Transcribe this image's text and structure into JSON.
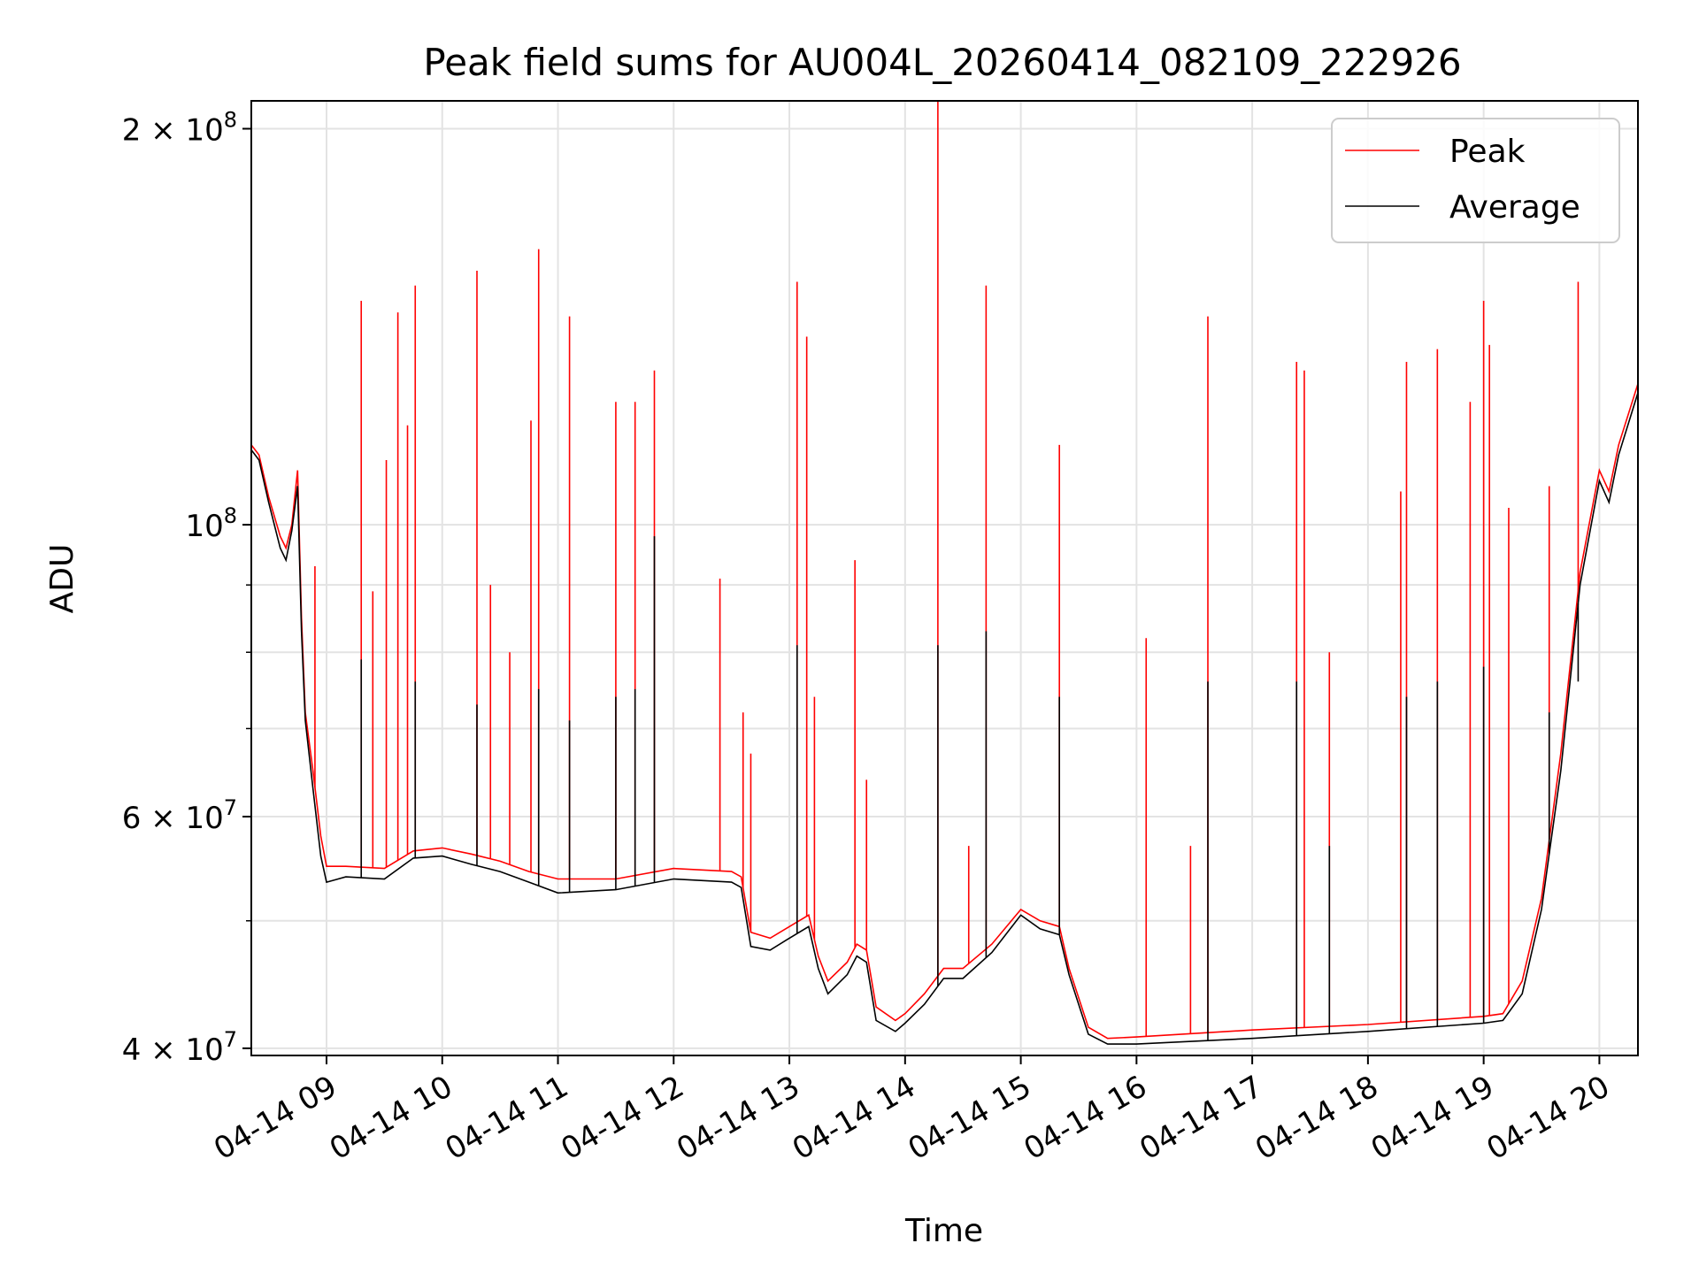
{
  "chart_data": {
    "type": "line",
    "title": "Peak field sums for AU004L_20260414_082109_222926",
    "xlabel": "Time",
    "ylabel": "ADU",
    "yscale": "log",
    "ylim": [
      39500000,
      210000000
    ],
    "xlim": [
      "2026-04-14 08:21",
      "2026-04-14 20:20"
    ],
    "grid": true,
    "legend_position": "top-right",
    "x_ticks": [
      {
        "x": "2026-04-14 09:00",
        "label": "04-14 09"
      },
      {
        "x": "2026-04-14 10:00",
        "label": "04-14 10"
      },
      {
        "x": "2026-04-14 11:00",
        "label": "04-14 11"
      },
      {
        "x": "2026-04-14 12:00",
        "label": "04-14 12"
      },
      {
        "x": "2026-04-14 13:00",
        "label": "04-14 13"
      },
      {
        "x": "2026-04-14 14:00",
        "label": "04-14 14"
      },
      {
        "x": "2026-04-14 15:00",
        "label": "04-14 15"
      },
      {
        "x": "2026-04-14 16:00",
        "label": "04-14 16"
      },
      {
        "x": "2026-04-14 17:00",
        "label": "04-14 17"
      },
      {
        "x": "2026-04-14 18:00",
        "label": "04-14 18"
      },
      {
        "x": "2026-04-14 19:00",
        "label": "04-14 19"
      },
      {
        "x": "2026-04-14 20:00",
        "label": "04-14 20"
      }
    ],
    "y_ticks": [
      {
        "y": 200000000,
        "base": "2 × 10",
        "exp": "8"
      },
      {
        "y": 100000000,
        "base": "10",
        "exp": "8"
      },
      {
        "y": 60000000,
        "base": "6 × 10",
        "exp": "7"
      },
      {
        "y": 40000000,
        "base": "4 × 10",
        "exp": "7"
      }
    ],
    "y_minor_ticks": [
      50000000,
      70000000,
      80000000,
      90000000
    ],
    "series": [
      {
        "name": "Peak",
        "color": "#ff0000",
        "points": [
          [
            "2026-04-14 08:21",
            115000000
          ],
          [
            "2026-04-14 08:25",
            113000000
          ],
          [
            "2026-04-14 08:30",
            105000000
          ],
          [
            "2026-04-14 08:36",
            98000000
          ],
          [
            "2026-04-14 08:39",
            96000000
          ],
          [
            "2026-04-14 08:42",
            100000000
          ],
          [
            "2026-04-14 08:45",
            110000000
          ],
          [
            "2026-04-14 08:47",
            85000000
          ],
          [
            "2026-04-14 08:49",
            72000000
          ],
          [
            "2026-04-14 08:53",
            65000000
          ],
          [
            "2026-04-14 08:57",
            58000000
          ],
          [
            "2026-04-14 09:00",
            55000000
          ],
          [
            "2026-04-14 09:10",
            55000000
          ],
          [
            "2026-04-14 09:30",
            54800000
          ],
          [
            "2026-04-14 09:45",
            56500000
          ],
          [
            "2026-04-14 10:00",
            56800000
          ],
          [
            "2026-04-14 10:15",
            56200000
          ],
          [
            "2026-04-14 10:30",
            55500000
          ],
          [
            "2026-04-14 10:45",
            54500000
          ],
          [
            "2026-04-14 11:00",
            53800000
          ],
          [
            "2026-04-14 11:30",
            53800000
          ],
          [
            "2026-04-14 12:00",
            54800000
          ],
          [
            "2026-04-14 12:30",
            54500000
          ],
          [
            "2026-04-14 12:35",
            54000000
          ],
          [
            "2026-04-14 12:40",
            49000000
          ],
          [
            "2026-04-14 12:50",
            48500000
          ],
          [
            "2026-04-14 13:00",
            49500000
          ],
          [
            "2026-04-14 13:10",
            50500000
          ],
          [
            "2026-04-14 13:15",
            47000000
          ],
          [
            "2026-04-14 13:20",
            45000000
          ],
          [
            "2026-04-14 13:30",
            46500000
          ],
          [
            "2026-04-14 13:35",
            48000000
          ],
          [
            "2026-04-14 13:40",
            47500000
          ],
          [
            "2026-04-14 13:45",
            43000000
          ],
          [
            "2026-04-14 13:55",
            42000000
          ],
          [
            "2026-04-14 14:00",
            42500000
          ],
          [
            "2026-04-14 14:10",
            44000000
          ],
          [
            "2026-04-14 14:20",
            46000000
          ],
          [
            "2026-04-14 14:30",
            46000000
          ],
          [
            "2026-04-14 14:45",
            48000000
          ],
          [
            "2026-04-14 15:00",
            51000000
          ],
          [
            "2026-04-14 15:10",
            50000000
          ],
          [
            "2026-04-14 15:20",
            49500000
          ],
          [
            "2026-04-14 15:25",
            46000000
          ],
          [
            "2026-04-14 15:35",
            41500000
          ],
          [
            "2026-04-14 15:45",
            40700000
          ],
          [
            "2026-04-14 16:00",
            40800000
          ],
          [
            "2026-04-14 17:00",
            41300000
          ],
          [
            "2026-04-14 18:00",
            41700000
          ],
          [
            "2026-04-14 19:00",
            42300000
          ],
          [
            "2026-04-14 19:10",
            42500000
          ],
          [
            "2026-04-14 19:20",
            45000000
          ],
          [
            "2026-04-14 19:30",
            52000000
          ],
          [
            "2026-04-14 19:40",
            67000000
          ],
          [
            "2026-04-14 19:50",
            92000000
          ],
          [
            "2026-04-14 20:00",
            110000000
          ],
          [
            "2026-04-14 20:05",
            106000000
          ],
          [
            "2026-04-14 20:10",
            115000000
          ],
          [
            "2026-04-14 20:20",
            128000000
          ]
        ],
        "spikes": [
          [
            "2026-04-14 08:54",
            93000000
          ],
          [
            "2026-04-14 09:18",
            148000000
          ],
          [
            "2026-04-14 09:24",
            89000000
          ],
          [
            "2026-04-14 09:31",
            112000000
          ],
          [
            "2026-04-14 09:37",
            145000000
          ],
          [
            "2026-04-14 09:42",
            119000000
          ],
          [
            "2026-04-14 09:46",
            152000000
          ],
          [
            "2026-04-14 10:18",
            156000000
          ],
          [
            "2026-04-14 10:25",
            90000000
          ],
          [
            "2026-04-14 10:35",
            80000000
          ],
          [
            "2026-04-14 10:46",
            120000000
          ],
          [
            "2026-04-14 10:50",
            162000000
          ],
          [
            "2026-04-14 11:06",
            144000000
          ],
          [
            "2026-04-14 11:30",
            124000000
          ],
          [
            "2026-04-14 11:40",
            124000000
          ],
          [
            "2026-04-14 11:50",
            131000000
          ],
          [
            "2026-04-14 12:24",
            91000000
          ],
          [
            "2026-04-14 12:36",
            72000000
          ],
          [
            "2026-04-14 12:40",
            67000000
          ],
          [
            "2026-04-14 13:04",
            153000000
          ],
          [
            "2026-04-14 13:09",
            139000000
          ],
          [
            "2026-04-14 13:13",
            74000000
          ],
          [
            "2026-04-14 13:34",
            94000000
          ],
          [
            "2026-04-14 13:40",
            64000000
          ],
          [
            "2026-04-14 14:17",
            210000000
          ],
          [
            "2026-04-14 14:33",
            57000000
          ],
          [
            "2026-04-14 14:42",
            152000000
          ],
          [
            "2026-04-14 15:20",
            115000000
          ],
          [
            "2026-04-14 16:05",
            82000000
          ],
          [
            "2026-04-14 16:28",
            57000000
          ],
          [
            "2026-04-14 16:37",
            144000000
          ],
          [
            "2026-04-14 17:23",
            133000000
          ],
          [
            "2026-04-14 17:27",
            131000000
          ],
          [
            "2026-04-14 17:40",
            80000000
          ],
          [
            "2026-04-14 18:17",
            106000000
          ],
          [
            "2026-04-14 18:20",
            133000000
          ],
          [
            "2026-04-14 18:36",
            136000000
          ],
          [
            "2026-04-14 18:53",
            124000000
          ],
          [
            "2026-04-14 19:00",
            148000000
          ],
          [
            "2026-04-14 19:03",
            137000000
          ],
          [
            "2026-04-14 19:13",
            103000000
          ],
          [
            "2026-04-14 19:34",
            107000000
          ],
          [
            "2026-04-14 19:49",
            153000000
          ]
        ]
      },
      {
        "name": "Average",
        "color": "#000000",
        "points": [
          [
            "2026-04-14 08:21",
            114000000
          ],
          [
            "2026-04-14 08:25",
            112000000
          ],
          [
            "2026-04-14 08:30",
            104000000
          ],
          [
            "2026-04-14 08:36",
            96000000
          ],
          [
            "2026-04-14 08:39",
            94000000
          ],
          [
            "2026-04-14 08:42",
            99000000
          ],
          [
            "2026-04-14 08:45",
            107000000
          ],
          [
            "2026-04-14 08:47",
            83000000
          ],
          [
            "2026-04-14 08:49",
            71000000
          ],
          [
            "2026-04-14 08:53",
            63000000
          ],
          [
            "2026-04-14 08:57",
            56000000
          ],
          [
            "2026-04-14 09:00",
            53500000
          ],
          [
            "2026-04-14 09:10",
            54000000
          ],
          [
            "2026-04-14 09:30",
            53800000
          ],
          [
            "2026-04-14 09:45",
            55800000
          ],
          [
            "2026-04-14 10:00",
            56000000
          ],
          [
            "2026-04-14 10:15",
            55200000
          ],
          [
            "2026-04-14 10:30",
            54500000
          ],
          [
            "2026-04-14 10:45",
            53500000
          ],
          [
            "2026-04-14 11:00",
            52500000
          ],
          [
            "2026-04-14 11:30",
            52800000
          ],
          [
            "2026-04-14 12:00",
            53800000
          ],
          [
            "2026-04-14 12:30",
            53500000
          ],
          [
            "2026-04-14 12:35",
            53000000
          ],
          [
            "2026-04-14 12:40",
            47800000
          ],
          [
            "2026-04-14 12:50",
            47500000
          ],
          [
            "2026-04-14 13:00",
            48500000
          ],
          [
            "2026-04-14 13:10",
            49500000
          ],
          [
            "2026-04-14 13:15",
            46000000
          ],
          [
            "2026-04-14 13:20",
            44000000
          ],
          [
            "2026-04-14 13:30",
            45500000
          ],
          [
            "2026-04-14 13:35",
            47000000
          ],
          [
            "2026-04-14 13:40",
            46500000
          ],
          [
            "2026-04-14 13:45",
            42000000
          ],
          [
            "2026-04-14 13:55",
            41200000
          ],
          [
            "2026-04-14 14:00",
            41800000
          ],
          [
            "2026-04-14 14:10",
            43200000
          ],
          [
            "2026-04-14 14:20",
            45200000
          ],
          [
            "2026-04-14 14:30",
            45200000
          ],
          [
            "2026-04-14 14:45",
            47300000
          ],
          [
            "2026-04-14 15:00",
            50500000
          ],
          [
            "2026-04-14 15:10",
            49300000
          ],
          [
            "2026-04-14 15:20",
            48800000
          ],
          [
            "2026-04-14 15:25",
            45500000
          ],
          [
            "2026-04-14 15:35",
            41000000
          ],
          [
            "2026-04-14 15:45",
            40300000
          ],
          [
            "2026-04-14 16:00",
            40300000
          ],
          [
            "2026-04-14 17:00",
            40700000
          ],
          [
            "2026-04-14 18:00",
            41200000
          ],
          [
            "2026-04-14 19:00",
            41800000
          ],
          [
            "2026-04-14 19:10",
            42000000
          ],
          [
            "2026-04-14 19:20",
            44000000
          ],
          [
            "2026-04-14 19:30",
            51000000
          ],
          [
            "2026-04-14 19:40",
            65000000
          ],
          [
            "2026-04-14 19:50",
            90000000
          ],
          [
            "2026-04-14 20:00",
            108000000
          ],
          [
            "2026-04-14 20:05",
            104000000
          ],
          [
            "2026-04-14 20:10",
            113000000
          ],
          [
            "2026-04-14 20:20",
            126000000
          ]
        ],
        "spikes": [
          [
            "2026-04-14 09:18",
            79000000
          ],
          [
            "2026-04-14 09:46",
            76000000
          ],
          [
            "2026-04-14 10:18",
            73000000
          ],
          [
            "2026-04-14 10:50",
            75000000
          ],
          [
            "2026-04-14 11:06",
            71000000
          ],
          [
            "2026-04-14 11:30",
            74000000
          ],
          [
            "2026-04-14 11:40",
            75000000
          ],
          [
            "2026-04-14 11:50",
            98000000
          ],
          [
            "2026-04-14 13:04",
            81000000
          ],
          [
            "2026-04-14 14:17",
            81000000
          ],
          [
            "2026-04-14 14:42",
            83000000
          ],
          [
            "2026-04-14 15:20",
            74000000
          ],
          [
            "2026-04-14 16:37",
            76000000
          ],
          [
            "2026-04-14 17:23",
            76000000
          ],
          [
            "2026-04-14 17:40",
            57000000
          ],
          [
            "2026-04-14 18:20",
            74000000
          ],
          [
            "2026-04-14 18:36",
            76000000
          ],
          [
            "2026-04-14 19:00",
            78000000
          ],
          [
            "2026-04-14 19:34",
            72000000
          ],
          [
            "2026-04-14 19:49",
            76000000
          ]
        ]
      }
    ]
  }
}
